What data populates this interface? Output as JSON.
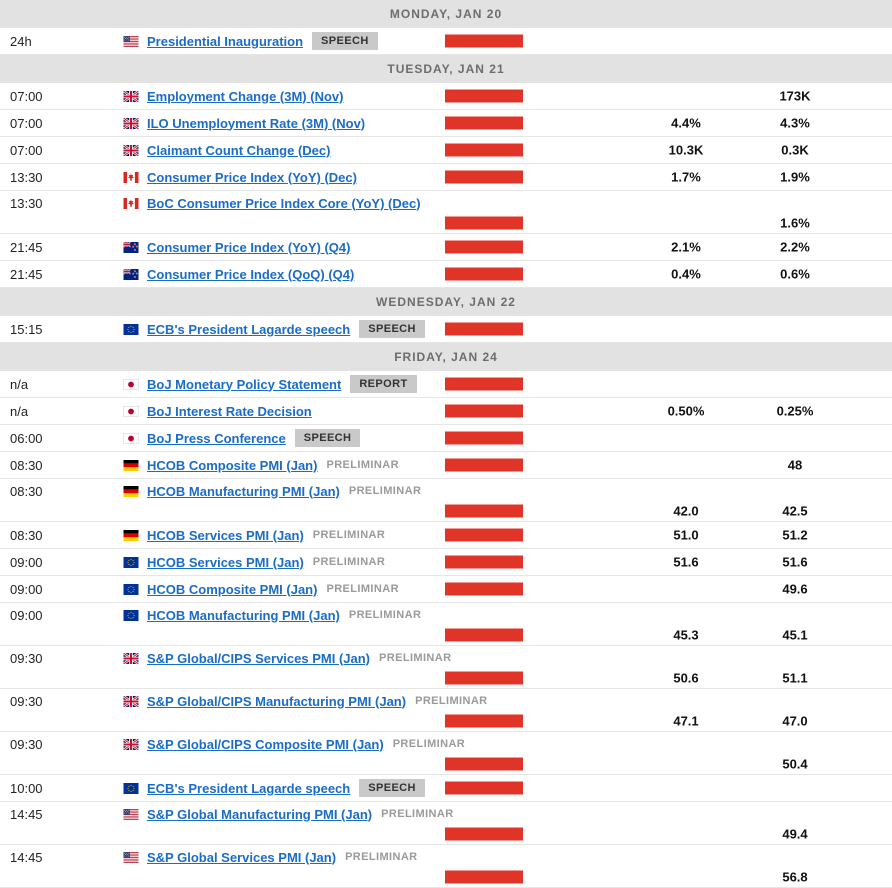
{
  "theme": {
    "link_color": "#1a6cc9",
    "impact_bar_color": "#e03428",
    "day_header_bg": "#e2e2e2",
    "day_header_text": "#6d6d6d",
    "badge_bg": "#c9c9c9",
    "row_border": "#e6e6e6"
  },
  "days": [
    {
      "label": "MONDAY, JAN 20",
      "events": [
        {
          "time": "24h",
          "flag": "us",
          "title": "Presidential Inauguration",
          "badge": "SPEECH",
          "forecast": "",
          "previous": "",
          "two_line": false
        }
      ]
    },
    {
      "label": "TUESDAY, JAN 21",
      "events": [
        {
          "time": "07:00",
          "flag": "gb",
          "title": "Employment Change (3M) (Nov)",
          "badge": "",
          "forecast": "",
          "previous": "173K",
          "two_line": false
        },
        {
          "time": "07:00",
          "flag": "gb",
          "title": "ILO Unemployment Rate (3M) (Nov)",
          "badge": "",
          "forecast": "4.4%",
          "previous": "4.3%",
          "two_line": false
        },
        {
          "time": "07:00",
          "flag": "gb",
          "title": "Claimant Count Change (Dec)",
          "badge": "",
          "forecast": "10.3K",
          "previous": "0.3K",
          "two_line": false
        },
        {
          "time": "13:30",
          "flag": "ca",
          "title": "Consumer Price Index (YoY) (Dec)",
          "badge": "",
          "forecast": "1.7%",
          "previous": "1.9%",
          "two_line": false
        },
        {
          "time": "13:30",
          "flag": "ca",
          "title": "BoC Consumer Price Index Core (YoY) (Dec)",
          "badge": "",
          "forecast": "",
          "previous": "1.6%",
          "two_line": true
        },
        {
          "time": "21:45",
          "flag": "nz",
          "title": "Consumer Price Index (YoY) (Q4)",
          "badge": "",
          "forecast": "2.1%",
          "previous": "2.2%",
          "two_line": false
        },
        {
          "time": "21:45",
          "flag": "nz",
          "title": "Consumer Price Index (QoQ) (Q4)",
          "badge": "",
          "forecast": "0.4%",
          "previous": "0.6%",
          "two_line": false
        }
      ]
    },
    {
      "label": "WEDNESDAY, JAN 22",
      "events": [
        {
          "time": "15:15",
          "flag": "eu",
          "title": "ECB's President Lagarde speech",
          "badge": "SPEECH",
          "forecast": "",
          "previous": "",
          "two_line": false
        }
      ]
    },
    {
      "label": "FRIDAY, JAN 24",
      "events": [
        {
          "time": "n/a",
          "flag": "jp",
          "title": "BoJ Monetary Policy Statement",
          "badge": "REPORT",
          "forecast": "",
          "previous": "",
          "two_line": false
        },
        {
          "time": "n/a",
          "flag": "jp",
          "title": "BoJ Interest Rate Decision",
          "badge": "",
          "forecast": "0.50%",
          "previous": "0.25%",
          "two_line": false
        },
        {
          "time": "06:00",
          "flag": "jp",
          "title": "BoJ Press Conference",
          "badge": "SPEECH",
          "forecast": "",
          "previous": "",
          "two_line": false
        },
        {
          "time": "08:30",
          "flag": "de",
          "title": "HCOB Composite PMI (Jan)",
          "badge": "PRELIMINAR",
          "forecast": "",
          "previous": "48",
          "two_line": false
        },
        {
          "time": "08:30",
          "flag": "de",
          "title": "HCOB Manufacturing PMI (Jan)",
          "badge": "PRELIMINAR",
          "forecast": "42.0",
          "previous": "42.5",
          "two_line": true
        },
        {
          "time": "08:30",
          "flag": "de",
          "title": "HCOB Services PMI (Jan)",
          "badge": "PRELIMINAR",
          "forecast": "51.0",
          "previous": "51.2",
          "two_line": false
        },
        {
          "time": "09:00",
          "flag": "eu",
          "title": "HCOB Services PMI (Jan)",
          "badge": "PRELIMINAR",
          "forecast": "51.6",
          "previous": "51.6",
          "two_line": false
        },
        {
          "time": "09:00",
          "flag": "eu",
          "title": "HCOB Composite PMI (Jan)",
          "badge": "PRELIMINAR",
          "forecast": "",
          "previous": "49.6",
          "two_line": false
        },
        {
          "time": "09:00",
          "flag": "eu",
          "title": "HCOB Manufacturing PMI (Jan)",
          "badge": "PRELIMINAR",
          "forecast": "45.3",
          "previous": "45.1",
          "two_line": true
        },
        {
          "time": "09:30",
          "flag": "gb",
          "title": "S&P Global/CIPS Services PMI (Jan)",
          "badge": "PRELIMINAR",
          "forecast": "50.6",
          "previous": "51.1",
          "two_line": true
        },
        {
          "time": "09:30",
          "flag": "gb",
          "title": "S&P Global/CIPS Manufacturing PMI (Jan)",
          "badge": "PRELIMINAR",
          "forecast": "47.1",
          "previous": "47.0",
          "two_line": true
        },
        {
          "time": "09:30",
          "flag": "gb",
          "title": "S&P Global/CIPS Composite PMI (Jan)",
          "badge": "PRELIMINAR",
          "forecast": "",
          "previous": "50.4",
          "two_line": true
        },
        {
          "time": "10:00",
          "flag": "eu",
          "title": "ECB's President Lagarde speech",
          "badge": "SPEECH",
          "forecast": "",
          "previous": "",
          "two_line": false
        },
        {
          "time": "14:45",
          "flag": "us",
          "title": "S&P Global Manufacturing PMI (Jan)",
          "badge": "PRELIMINAR",
          "forecast": "",
          "previous": "49.4",
          "two_line": true
        },
        {
          "time": "14:45",
          "flag": "us",
          "title": "S&P Global Services PMI (Jan)",
          "badge": "PRELIMINAR",
          "forecast": "",
          "previous": "56.8",
          "two_line": true
        }
      ]
    }
  ]
}
